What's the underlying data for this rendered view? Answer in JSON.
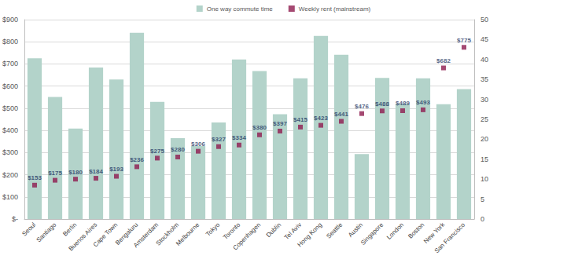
{
  "chart_data": {
    "type": "bar",
    "categories": [
      "Seoul",
      "Santiago",
      "Berlin",
      "Buenos Aires",
      "Cape Town",
      "Bengaluru",
      "Amsterdam",
      "Stockholm",
      "Melbourne",
      "Tokyo",
      "Toronto",
      "Copenhagen",
      "Dublin",
      "Tel Aviv",
      "Hong Kong",
      "Seattle",
      "Austin",
      "Singapore",
      "London",
      "Boston",
      "New York",
      "San Francisco"
    ],
    "series": [
      {
        "name": "One way commute time",
        "type": "bar",
        "axis": "y2",
        "color": "#b3d3ca",
        "values": [
          40.3,
          30.6,
          22.7,
          38.0,
          35.0,
          46.7,
          29.4,
          20.3,
          18.3,
          24.2,
          40.0,
          37.1,
          26.3,
          35.3,
          45.9,
          41.2,
          16.3,
          35.4,
          28.9,
          35.3,
          28.8,
          32.6
        ]
      },
      {
        "name": "Weekly rent (mainstream)",
        "type": "scatter",
        "marker": "square",
        "color": "#8e1b4f",
        "data_labels": true,
        "values": [
          153,
          175,
          180,
          184,
          193,
          236,
          275,
          280,
          306,
          327,
          334,
          380,
          397,
          415,
          423,
          441,
          476,
          488,
          489,
          493,
          682,
          775
        ],
        "value_labels": [
          "$153",
          "$175",
          "$180",
          "$184",
          "$193",
          "$236",
          "$275",
          "$280",
          "$306",
          "$327",
          "$334",
          "$380",
          "$397",
          "$415",
          "$423",
          "$441",
          "$476",
          "$488",
          "$489",
          "$493",
          "$682",
          "$775"
        ]
      }
    ],
    "ylim": [
      0,
      900
    ],
    "yticks": [
      {
        "value": 0,
        "label": "$-"
      },
      {
        "value": 100,
        "label": "$100"
      },
      {
        "value": 200,
        "label": "$200"
      },
      {
        "value": 300,
        "label": "$300"
      },
      {
        "value": 400,
        "label": "$400"
      },
      {
        "value": 500,
        "label": "$500"
      },
      {
        "value": 600,
        "label": "$600"
      },
      {
        "value": 700,
        "label": "$700"
      },
      {
        "value": 800,
        "label": "$800"
      },
      {
        "value": 900,
        "label": "$900"
      }
    ],
    "y2lim": [
      0,
      50
    ],
    "y2ticks": [
      0,
      5,
      10,
      15,
      20,
      25,
      30,
      35,
      40,
      45,
      50
    ],
    "grid": true,
    "legend": "top"
  }
}
